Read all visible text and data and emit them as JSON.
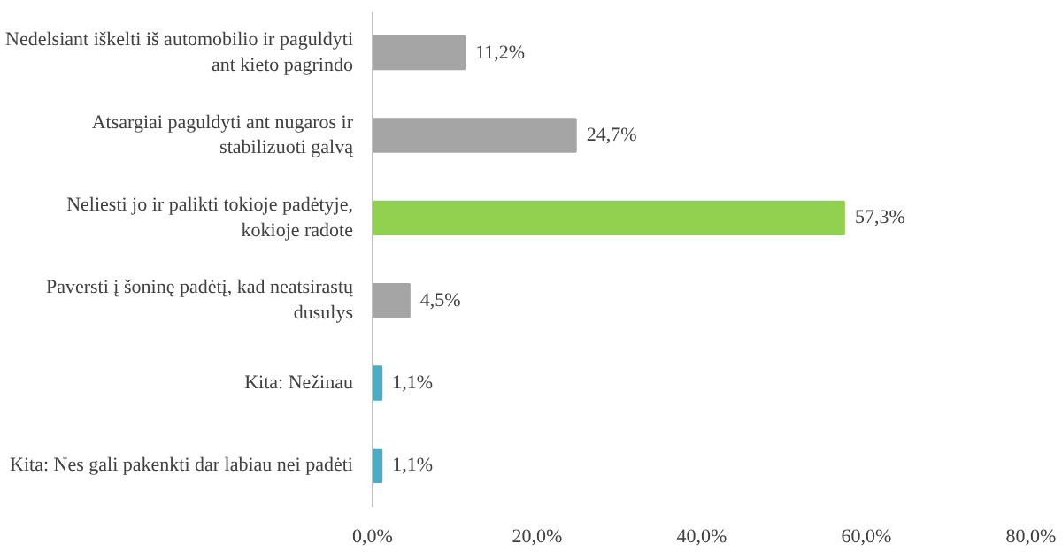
{
  "chart_data": {
    "type": "bar",
    "orientation": "horizontal",
    "categories": [
      "Nedelsiant iškelti iš automobilio ir paguldyti ant kieto pagrindo",
      "Atsargiai paguldyti ant nugaros ir stabilizuoti galvą",
      "Neliesti jo ir palikti tokioje padėtyje, kokioje radote",
      "Paversti į šoninę padėtį, kad neatsirastų dusulys",
      "Kita: Nežinau",
      "Kita: Nes gali pakenkti dar labiau nei padėti"
    ],
    "values": [
      11.2,
      24.7,
      57.3,
      4.5,
      1.1,
      1.1
    ],
    "colors": [
      "#a5a5a5",
      "#a5a5a5",
      "#92d050",
      "#a5a5a5",
      "#4bacc6",
      "#4bacc6"
    ],
    "value_labels": [
      "11,2%",
      "24,7%",
      "57,3%",
      "4,5%",
      "1,1%",
      "1,1%"
    ],
    "xlim": [
      0,
      80
    ],
    "xticks": [
      {
        "value": 0,
        "label": "0,0%"
      },
      {
        "value": 20,
        "label": "20,0%"
      },
      {
        "value": 40,
        "label": "40,0%"
      },
      {
        "value": 60,
        "label": "60,0%"
      },
      {
        "value": 80,
        "label": "80,0%"
      }
    ],
    "grid": false
  }
}
